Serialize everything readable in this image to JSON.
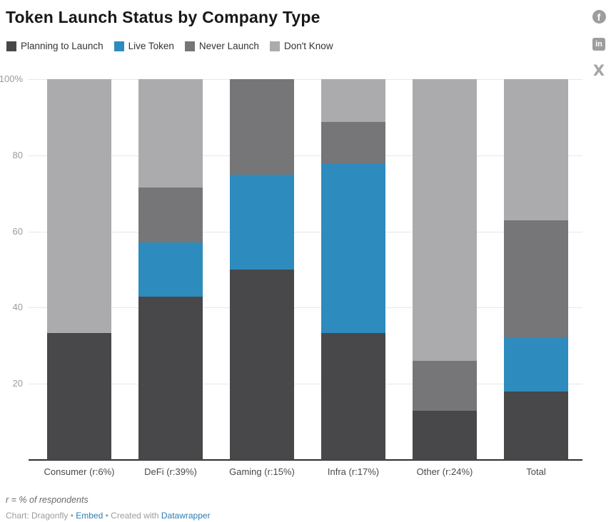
{
  "header": {
    "title": "Token Launch Status by Company Type"
  },
  "social": {
    "facebook_glyph": "f",
    "linkedin_glyph": "in",
    "x_glyph": "X"
  },
  "legend": {
    "items": [
      {
        "label": "Planning to Launch",
        "color": "#48484a"
      },
      {
        "label": "Live Token",
        "color": "#2d8cbd"
      },
      {
        "label": "Never Launch",
        "color": "#767678"
      },
      {
        "label": "Don't Know",
        "color": "#ababad"
      }
    ]
  },
  "chart_data": {
    "type": "bar",
    "subtype": "stacked-percentage-column",
    "title": "Token Launch Status by Company Type",
    "xlabel": "",
    "ylabel": "",
    "ylim": [
      0,
      100
    ],
    "grid": true,
    "legend_position": "top",
    "categories": [
      "Consumer (r:6%)",
      "DeFi (r:39%)",
      "Gaming (r:15%)",
      "Infra (r:17%)",
      "Other (r:24%)",
      "Total"
    ],
    "series": [
      {
        "name": "Planning to Launch",
        "color": "#48484a",
        "values": [
          33.3,
          42.9,
          50.0,
          33.3,
          13.0,
          18.0
        ]
      },
      {
        "name": "Live Token",
        "color": "#2d8cbd",
        "values": [
          0.0,
          14.3,
          25.0,
          44.4,
          0.0,
          14.0
        ]
      },
      {
        "name": "Never Launch",
        "color": "#767678",
        "values": [
          0.0,
          14.3,
          25.0,
          11.1,
          13.0,
          31.0
        ]
      },
      {
        "name": "Don't Know",
        "color": "#ababad",
        "values": [
          66.7,
          28.5,
          0.0,
          11.2,
          74.0,
          37.0
        ]
      }
    ],
    "yticks": [
      {
        "value": 20,
        "label": "20"
      },
      {
        "value": 40,
        "label": "40"
      },
      {
        "value": 60,
        "label": "60"
      },
      {
        "value": 80,
        "label": "80"
      },
      {
        "value": 100,
        "label": "100%"
      }
    ]
  },
  "footer": {
    "note": "r = % of respondents",
    "credit": "Chart: Dragonfly",
    "bullet1": " • ",
    "embed_label": "Embed",
    "bullet2": " • ",
    "created_with": "Created with ",
    "datawrapper_label": "Datawrapper"
  }
}
